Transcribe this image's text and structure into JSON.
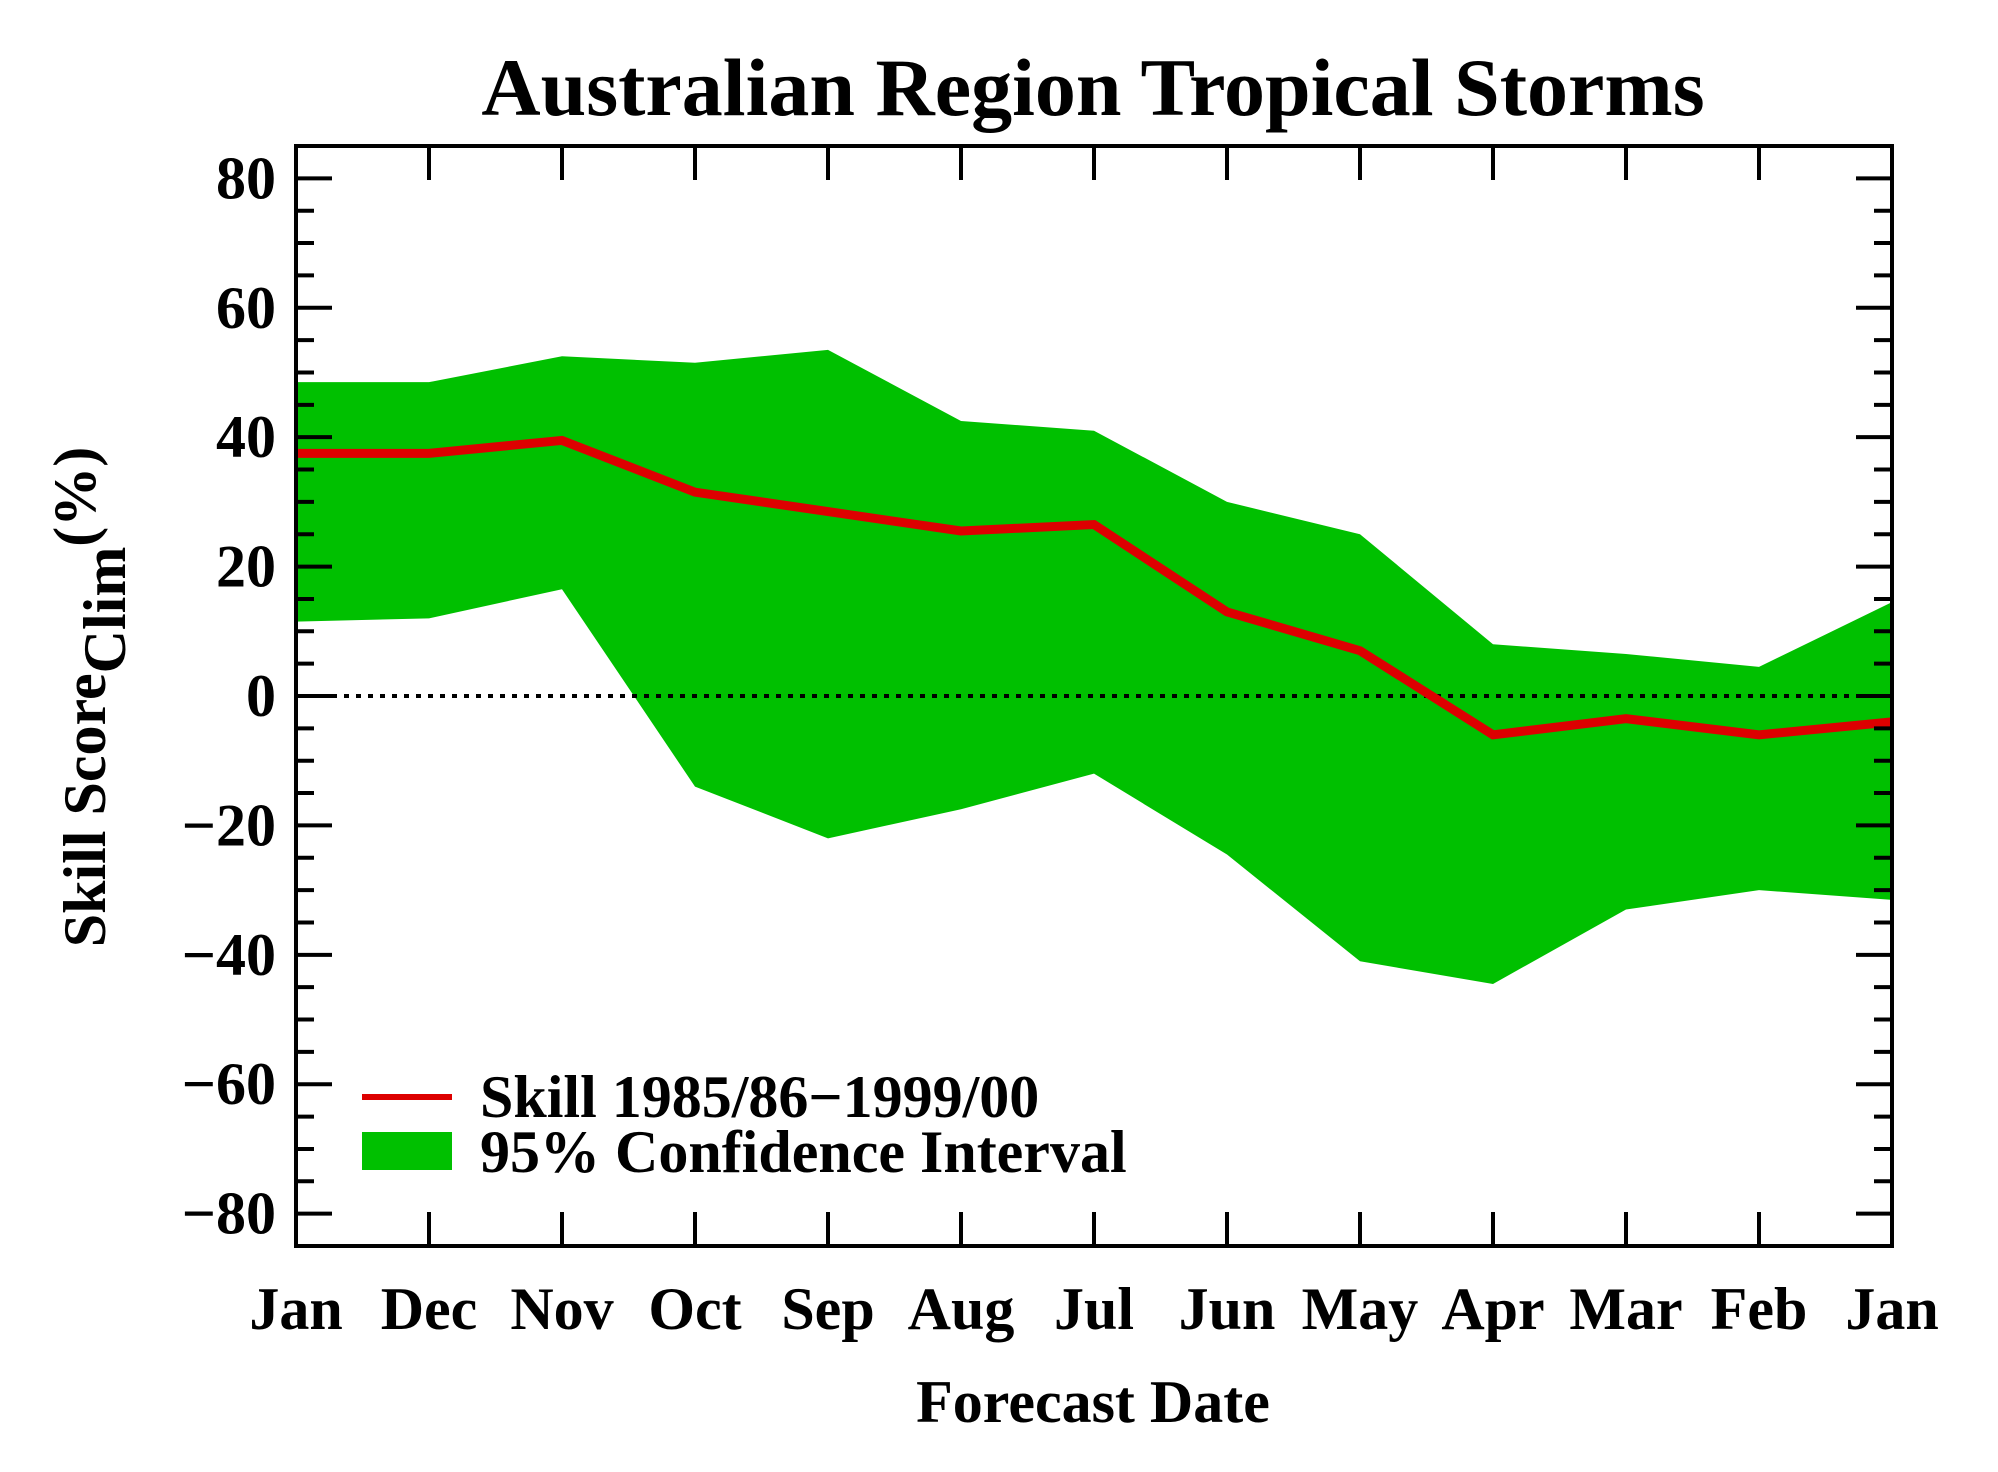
{
  "chart_data": {
    "type": "line",
    "title": "Australian Region Tropical Storms",
    "xlabel": "Forecast Date",
    "ylabel": {
      "main": "Skill Score",
      "subscript": "Clim",
      "unit": "(%)"
    },
    "categories": [
      "Jan",
      "Dec",
      "Nov",
      "Oct",
      "Sep",
      "Aug",
      "Jul",
      "Jun",
      "May",
      "Apr",
      "Mar",
      "Feb",
      "Jan"
    ],
    "ylim": [
      -85,
      85
    ],
    "yticks": [
      -80,
      -60,
      -40,
      -20,
      0,
      20,
      40,
      60,
      80
    ],
    "ytick_labels": [
      "−80",
      "−60",
      "−40",
      "−20",
      "0",
      "20",
      "40",
      "60",
      "80"
    ],
    "series": [
      {
        "name": "Skill 1985/86−1999/00",
        "kind": "line",
        "color": "#dd0000",
        "values": [
          37.5,
          37.5,
          39.5,
          31.5,
          28.5,
          25.5,
          26.5,
          13,
          7,
          -6,
          -3.5,
          -6,
          -4
        ]
      },
      {
        "name": "95% Confidence Interval",
        "kind": "band",
        "color": "#00c000",
        "upper": [
          48.5,
          48.5,
          52.5,
          51.5,
          53.5,
          42.5,
          41,
          30,
          25,
          8,
          6.5,
          4.5,
          14.5
        ],
        "lower": [
          11.5,
          12,
          16.5,
          -14,
          -22,
          -17.5,
          -12,
          -24.5,
          -41,
          -44.5,
          -33,
          -30,
          -31.5
        ]
      }
    ],
    "reference_line": {
      "y": 0,
      "style": "dotted"
    },
    "legend": {
      "position": "bottom-left"
    },
    "grid": false
  }
}
